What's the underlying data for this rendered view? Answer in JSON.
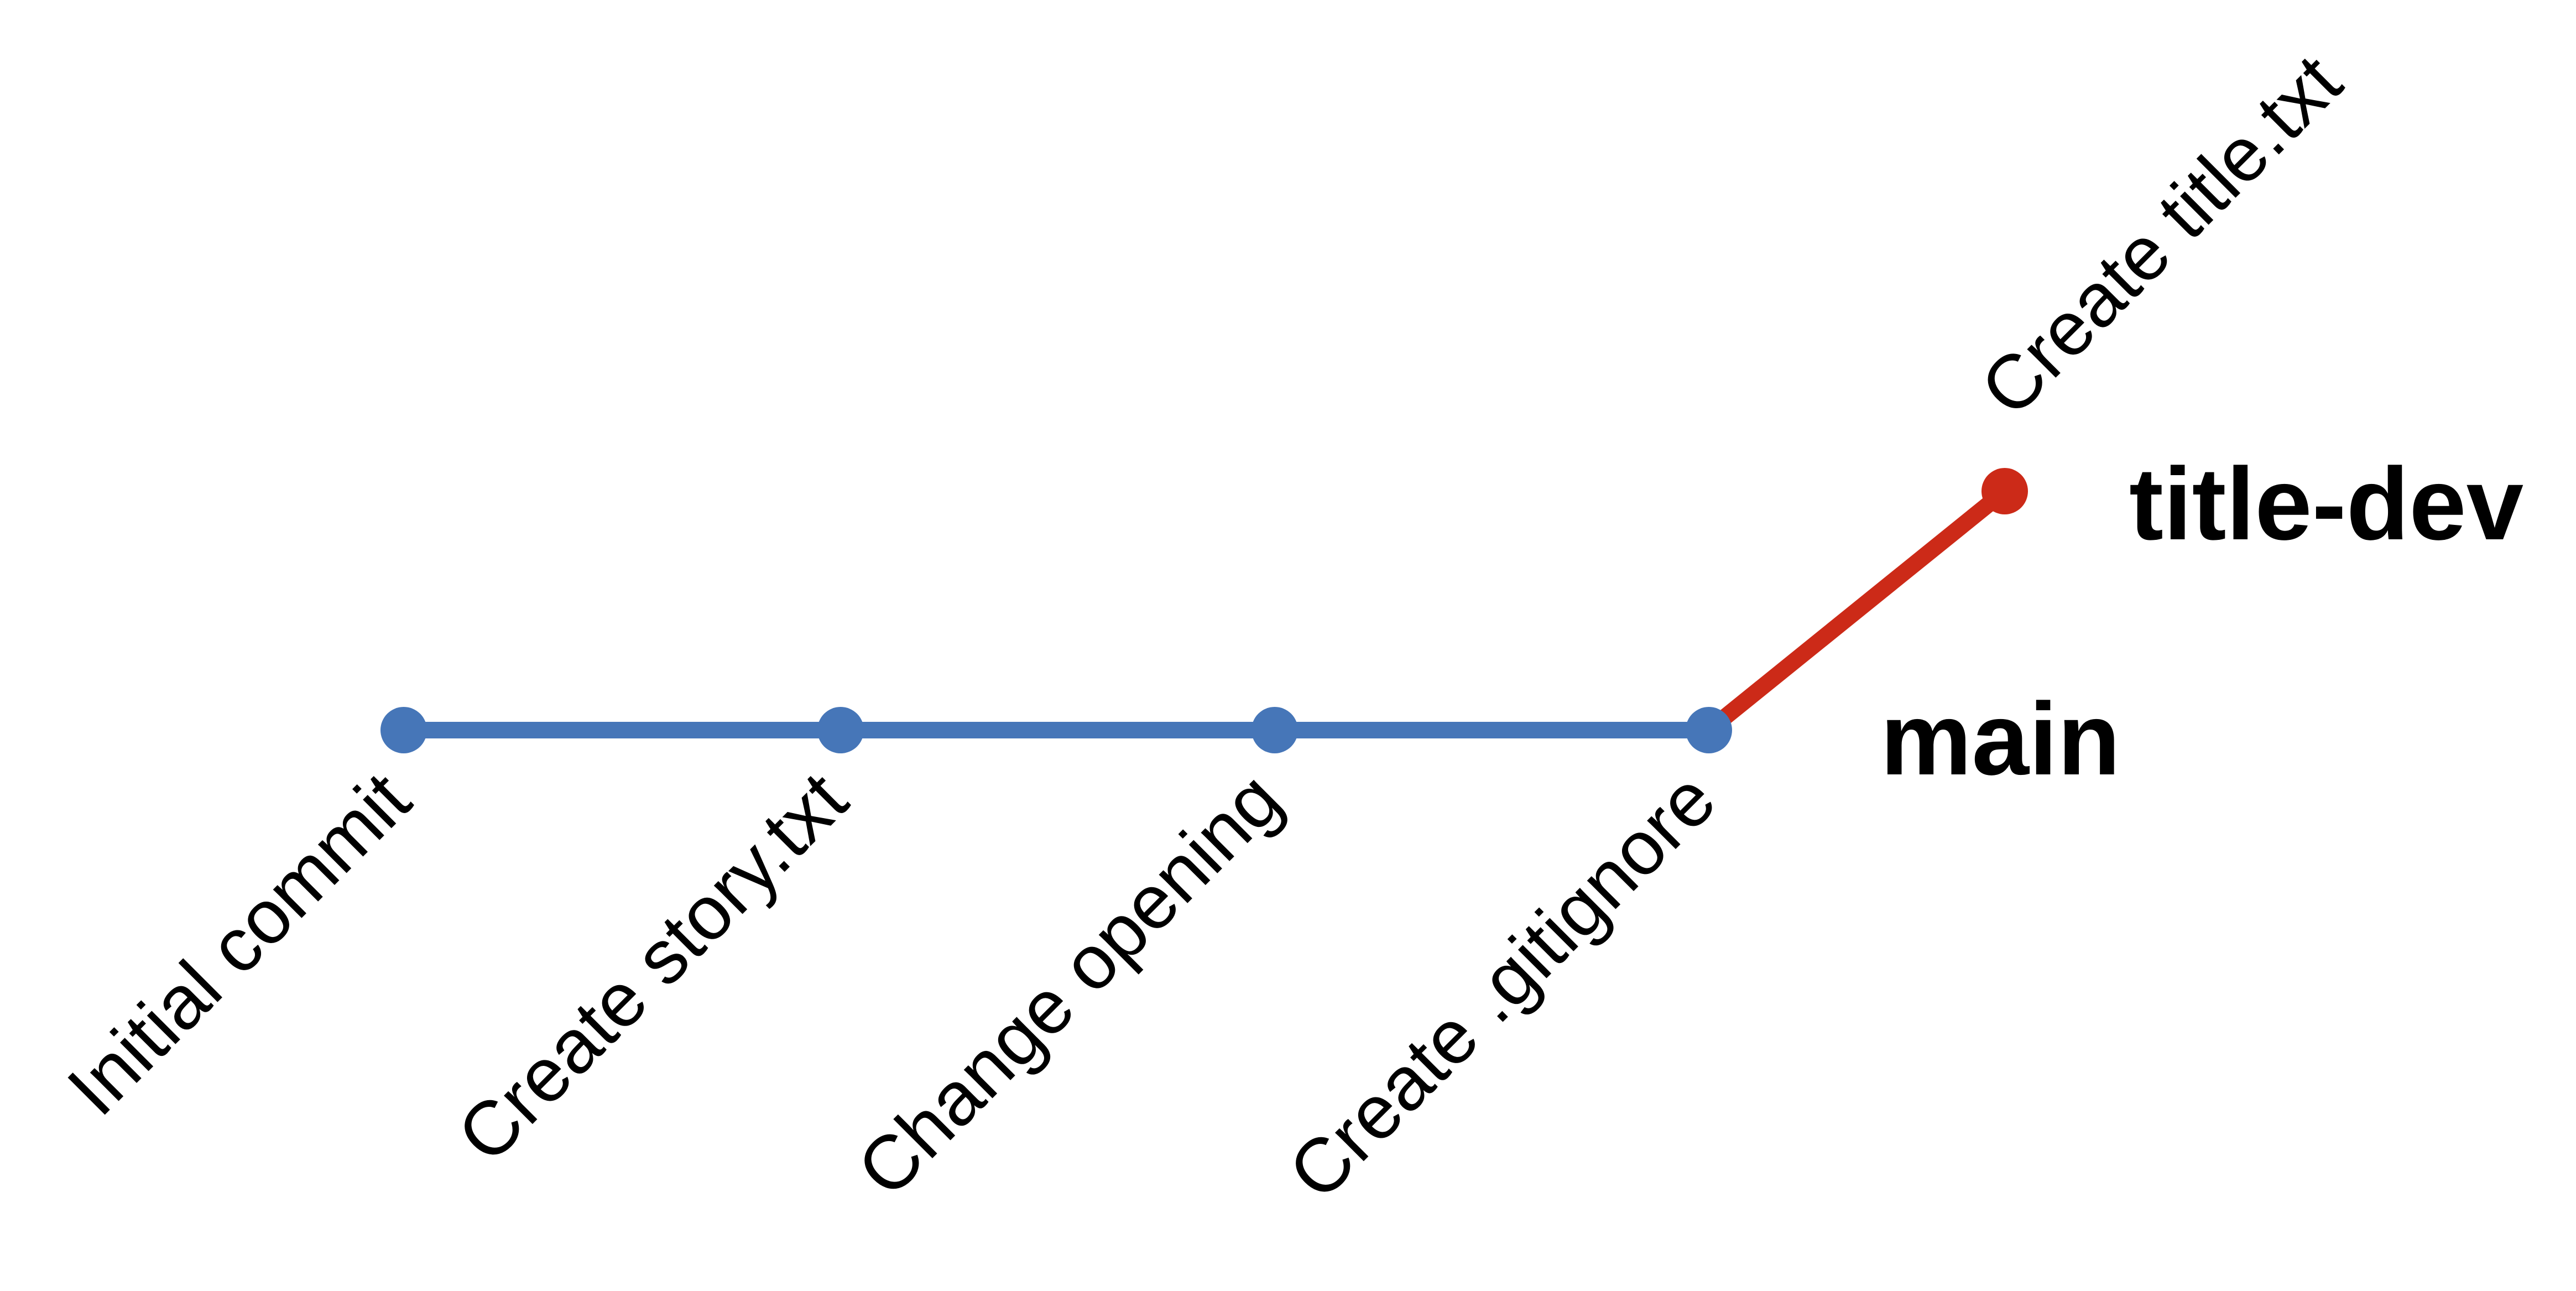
{
  "colors": {
    "main_branch": "#4676b8",
    "feature_branch": "#cc2a18",
    "text": "#000000",
    "background": "#ffffff"
  },
  "commits": [
    {
      "message": "Initial commit",
      "branch": "main"
    },
    {
      "message": "Create story.txt",
      "branch": "main"
    },
    {
      "message": "Change opening",
      "branch": "main"
    },
    {
      "message": "Create .gitignore",
      "branch": "main"
    },
    {
      "message": "Create title.txt",
      "branch": "title-dev"
    }
  ],
  "branches": [
    {
      "name": "main",
      "head_commit": 3
    },
    {
      "name": "title-dev",
      "head_commit": 4,
      "parent_commit": 3
    }
  ]
}
